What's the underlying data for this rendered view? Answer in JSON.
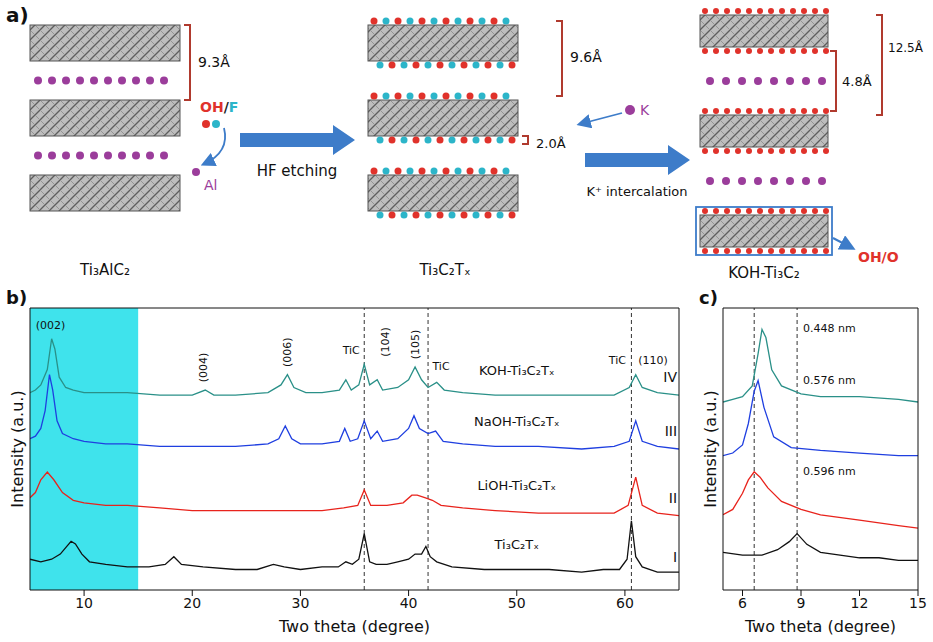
{
  "diagram": {
    "label": "a)",
    "precursor": {
      "name": "Ti₃AlC₂",
      "spacing": "9.3Å",
      "removed": "Al"
    },
    "etching": {
      "text": "HF etching",
      "reagents": [
        {
          "text": "OH",
          "color": "#e0322b"
        },
        {
          "text": "/",
          "color": "#1f1f1f"
        },
        {
          "text": "F",
          "color": "#2cb5c9"
        }
      ]
    },
    "etched": {
      "name": "Ti₃C₂Tₓ",
      "spacing": "9.6Å",
      "termination": "2.0Å"
    },
    "intercalation": {
      "text": "K⁺ intercalation",
      "ion": "K"
    },
    "product": {
      "name": "KOH-Ti₃C₂",
      "spacing": "12.5Å",
      "gap": "4.8Å",
      "termination": "OH/O"
    }
  },
  "chart_data": [
    {
      "type": "line",
      "panel": "b)",
      "xlabel": "Two theta (degree)",
      "ylabel": "Intensity (a.u.)",
      "xlim": [
        5,
        65
      ],
      "xticks": [
        10,
        20,
        30,
        40,
        50,
        60
      ],
      "ylim": [
        0,
        110
      ],
      "tick_labels": "x",
      "highlight": [
        5,
        15
      ],
      "reference_lines": [
        35.9,
        41.8,
        60.6
      ],
      "peak_labels": [
        {
          "text": "(002)",
          "x": 6.9
        },
        {
          "text": "(004)",
          "x": 21
        },
        {
          "text": "(006)",
          "x": 28.8
        },
        {
          "text": "TiC",
          "x": 34.7
        },
        {
          "text": "(104)",
          "x": 37.8
        },
        {
          "text": "(105)",
          "x": 40.6
        },
        {
          "text": "TiC",
          "x": 43.0
        },
        {
          "text": "TiC",
          "x": 59.3
        },
        {
          "text": "(110)",
          "x": 62.6
        }
      ],
      "series": [
        {
          "name": "KOH-Ti₃C₂Tₓ",
          "index_label": "IV",
          "color": "#2a9088",
          "x": [
            5,
            5.5,
            6,
            6.6,
            7,
            7.3,
            7.7,
            8.3,
            9,
            10,
            12,
            14,
            17,
            20,
            21.2,
            22,
            24,
            27,
            28.2,
            28.8,
            29.4,
            30.5,
            32,
            33.6,
            34.2,
            34.7,
            35.4,
            35.9,
            36.4,
            37.1,
            37.6,
            39,
            40,
            40.6,
            41.2,
            41.8,
            42.6,
            43.3,
            45,
            48,
            52,
            56,
            59,
            60.4,
            61,
            61.6,
            63,
            65
          ],
          "values": [
            77,
            78,
            80,
            86,
            98,
            94,
            83,
            79,
            78,
            77,
            77,
            77,
            76,
            76,
            78,
            76,
            76,
            77,
            80,
            84,
            79,
            77,
            77,
            78,
            82,
            78,
            80,
            88,
            80,
            82,
            78,
            79,
            82,
            87,
            82,
            79,
            81,
            78,
            77,
            76,
            76,
            76,
            76,
            79,
            84,
            79,
            77,
            76
          ]
        },
        {
          "name": "NaOH-Ti₃C₂Tₓ",
          "index_label": "III",
          "color": "#1f3fe0",
          "x": [
            5,
            5.5,
            6,
            6.4,
            6.8,
            7.1,
            7.5,
            8,
            9,
            10,
            12,
            14,
            17,
            20,
            24,
            27,
            28,
            28.6,
            29.2,
            30,
            32,
            33.6,
            34.1,
            34.6,
            35.3,
            35.9,
            36.5,
            37.1,
            37.6,
            39,
            40,
            40.5,
            41,
            41.8,
            42.5,
            43.2,
            45,
            48,
            52,
            56,
            59,
            60.4,
            61,
            61.6,
            63,
            65
          ],
          "values": [
            59,
            60,
            63,
            70,
            84,
            78,
            66,
            61,
            59,
            58,
            57,
            57,
            56,
            56,
            56,
            57,
            59,
            64,
            59,
            57,
            57,
            58,
            63,
            58,
            59,
            66,
            59,
            62,
            58,
            59,
            63,
            68,
            63,
            61,
            62,
            58,
            57,
            56,
            56,
            55,
            56,
            58,
            66,
            58,
            56,
            55
          ]
        },
        {
          "name": "LiOH-Ti₃C₂Tₓ",
          "index_label": "II",
          "color": "#e8231c",
          "x": [
            5,
            5.5,
            6,
            6.6,
            7.2,
            8,
            9,
            10,
            12,
            14,
            17,
            20,
            24,
            28,
            30,
            32,
            34,
            35.3,
            35.9,
            36.5,
            38,
            39.5,
            40.3,
            40.8,
            41.5,
            42.2,
            43,
            45,
            48,
            52,
            56,
            59,
            60.3,
            61,
            61.6,
            63,
            65
          ],
          "values": [
            36,
            38,
            43,
            46,
            43,
            38,
            35,
            34,
            33,
            33,
            32,
            31,
            31,
            31,
            31,
            31,
            32,
            33,
            39,
            33,
            33,
            34,
            37,
            37,
            36,
            35,
            33,
            32,
            31,
            30,
            30,
            30,
            33,
            44,
            33,
            30,
            29
          ]
        },
        {
          "name": "Ti₃C₂Tₓ",
          "index_label": "I",
          "color": "#111111",
          "x": [
            5,
            6,
            7,
            7.8,
            8.4,
            8.8,
            9.2,
            9.8,
            10.5,
            12,
            14,
            16,
            17.5,
            18.3,
            19,
            21,
            24,
            26,
            27.5,
            28.5,
            30,
            32,
            33.5,
            34.2,
            34.8,
            35.4,
            35.9,
            36.4,
            37,
            38,
            39,
            40,
            40.6,
            41.2,
            41.6,
            42,
            42.6,
            44,
            47,
            50,
            53,
            56,
            58,
            59.5,
            60.2,
            60.6,
            61,
            61.6,
            63,
            65
          ],
          "values": [
            12,
            11,
            12,
            14,
            17,
            19,
            18,
            14,
            11,
            10,
            9,
            9,
            10,
            13,
            10,
            9,
            8,
            8,
            10,
            9,
            8,
            9,
            9,
            11,
            10,
            12,
            22,
            11,
            10,
            10,
            11,
            12,
            14,
            14,
            17,
            13,
            11,
            9,
            8,
            8,
            8,
            7,
            8,
            8,
            12,
            27,
            13,
            9,
            7,
            7
          ]
        }
      ]
    },
    {
      "type": "line",
      "panel": "c)",
      "xlabel": "Two theta (degree)",
      "ylabel": "Intensity (a.u.)",
      "xlim": [
        5,
        15
      ],
      "xticks": [
        6,
        9,
        12,
        15
      ],
      "ylim": [
        0,
        105
      ],
      "tick_labels": "x",
      "reference_lines": [
        6.6,
        8.8
      ],
      "series": [
        {
          "annotation": "0.448 nm",
          "color": "#2a9088",
          "x": [
            5,
            5.5,
            6,
            6.5,
            6.8,
            7,
            7.2,
            7.5,
            8,
            9,
            10,
            12,
            14,
            15
          ],
          "values": [
            70,
            71,
            72,
            76,
            88,
            97,
            94,
            82,
            76,
            73,
            72,
            72,
            71,
            70
          ]
        },
        {
          "annotation": "0.576 nm",
          "color": "#1f3fe0",
          "x": [
            5,
            5.5,
            6,
            6.3,
            6.6,
            6.8,
            7.1,
            7.6,
            8.5,
            10,
            12,
            14,
            15
          ],
          "values": [
            50,
            51,
            54,
            62,
            74,
            78,
            68,
            57,
            53,
            52,
            51,
            50,
            50
          ]
        },
        {
          "annotation": "0.596 nm",
          "color": "#e8231c",
          "x": [
            5,
            5.5,
            6,
            6.3,
            6.6,
            6.9,
            7.3,
            8,
            9,
            10,
            12,
            14,
            15
          ],
          "values": [
            28,
            30,
            36,
            41,
            44,
            42,
            38,
            33,
            30,
            28,
            26,
            24,
            23
          ]
        },
        {
          "color": "#111111",
          "x": [
            5,
            6,
            7,
            7.8,
            8.4,
            8.8,
            9.3,
            10,
            11,
            12,
            13,
            14,
            15
          ],
          "values": [
            14,
            13,
            13,
            15,
            18,
            21,
            17,
            14,
            13,
            12,
            12,
            11,
            11
          ]
        }
      ]
    }
  ]
}
